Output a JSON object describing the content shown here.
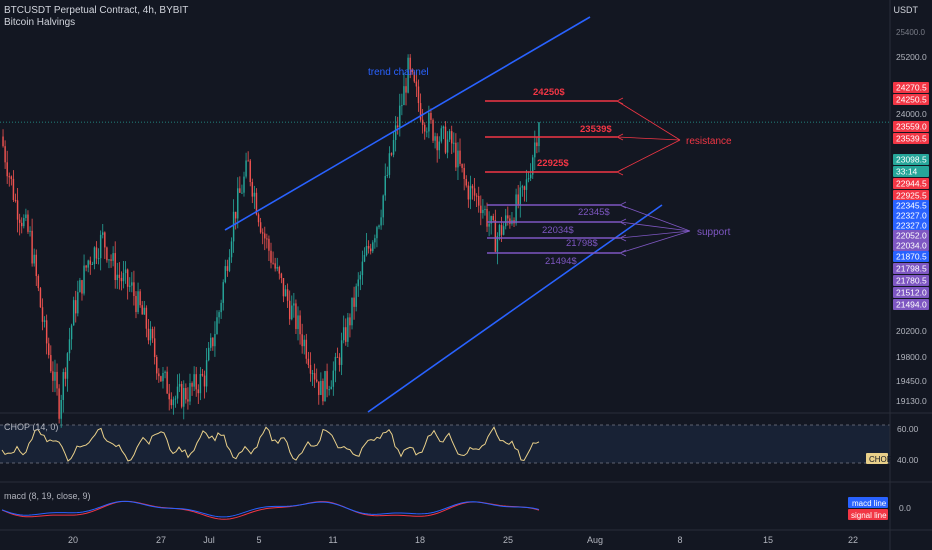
{
  "header": {
    "title": "BTCUSDT Perpetual Contract, 4h, BYBIT",
    "indicator": "Bitcoin Halvings",
    "currency": "USDT"
  },
  "colors": {
    "background": "#131722",
    "up": "#26a69a",
    "down": "#ef5350",
    "trend_line": "#2962ff",
    "resistance": "#f23645",
    "support": "#7e57c2",
    "chop_line": "#e9d08a",
    "macd_line": "#2962ff",
    "signal_line": "#f23645"
  },
  "annotations": {
    "trend_label": "trend channel",
    "resistance_label": "resistance",
    "support_label": "support",
    "resistance_levels": [
      "24250$",
      "23539$",
      "22925$"
    ],
    "support_levels": [
      "22345$",
      "22034$",
      "21798$",
      "21494$"
    ]
  },
  "price_axis": {
    "ticks": [
      "25200.0",
      "24000.0",
      "20200.0",
      "19800.0",
      "19450.0",
      "19130.0"
    ],
    "top_partial": "25400.0",
    "tags": [
      {
        "text": "24270.5",
        "color": "#f23645"
      },
      {
        "text": "24250.5",
        "color": "#f23645"
      },
      {
        "text": "23559.0",
        "color": "#f23645"
      },
      {
        "text": "23539.5",
        "color": "#f23645"
      },
      {
        "text": "23098.5",
        "color": "#26a69a"
      },
      {
        "text": "33:14",
        "color": "#26a69a"
      },
      {
        "text": "22944.5",
        "color": "#f23645"
      },
      {
        "text": "22925.5",
        "color": "#f23645"
      },
      {
        "text": "22345.5",
        "color": "#2962ff"
      },
      {
        "text": "22327.0",
        "color": "#2962ff"
      },
      {
        "text": "22327.0",
        "color": "#2962ff"
      },
      {
        "text": "22052.0",
        "color": "#7e57c2"
      },
      {
        "text": "22034.0",
        "color": "#7e57c2"
      },
      {
        "text": "21870.5",
        "color": "#2962ff"
      },
      {
        "text": "21798.5",
        "color": "#7e57c2"
      },
      {
        "text": "21780.5",
        "color": "#7e57c2"
      },
      {
        "text": "21512.0",
        "color": "#7e57c2"
      },
      {
        "text": "21494.0",
        "color": "#7e57c2"
      }
    ]
  },
  "chop": {
    "label": "CHOP (14, 0)",
    "ticks": [
      "60.00",
      "40.00"
    ],
    "tag": "CHOP"
  },
  "macd": {
    "label": "macd (8, 19, close, 9)",
    "tick": "0.0",
    "macd_tag": "macd line",
    "signal_tag": "signal line"
  },
  "time_axis": [
    "20",
    "27",
    "Jul",
    "5",
    "11",
    "18",
    "25",
    "Aug",
    "8",
    "15",
    "22"
  ],
  "chart_data": {
    "type": "candlestick",
    "title": "BTCUSDT Perpetual Contract, 4h, BYBIT",
    "last_price": 23098.5,
    "y_visible_range": [
      19000,
      25500
    ],
    "resistance_levels": [
      24250,
      23539,
      22925
    ],
    "support_levels": [
      22345,
      22034,
      21798,
      21494
    ],
    "approx_closes": [
      22900,
      22000,
      21500,
      20200,
      19200,
      20500,
      21200,
      21500,
      21000,
      20800,
      20300,
      19600,
      19300,
      19400,
      19600,
      20500,
      21800,
      22500,
      21600,
      21000,
      20500,
      20000,
      19400,
      19700,
      20400,
      21200,
      21800,
      22800,
      23800,
      23200,
      22900,
      22800,
      22200,
      22000,
      21500,
      21800,
      22100,
      23098.5
    ]
  }
}
